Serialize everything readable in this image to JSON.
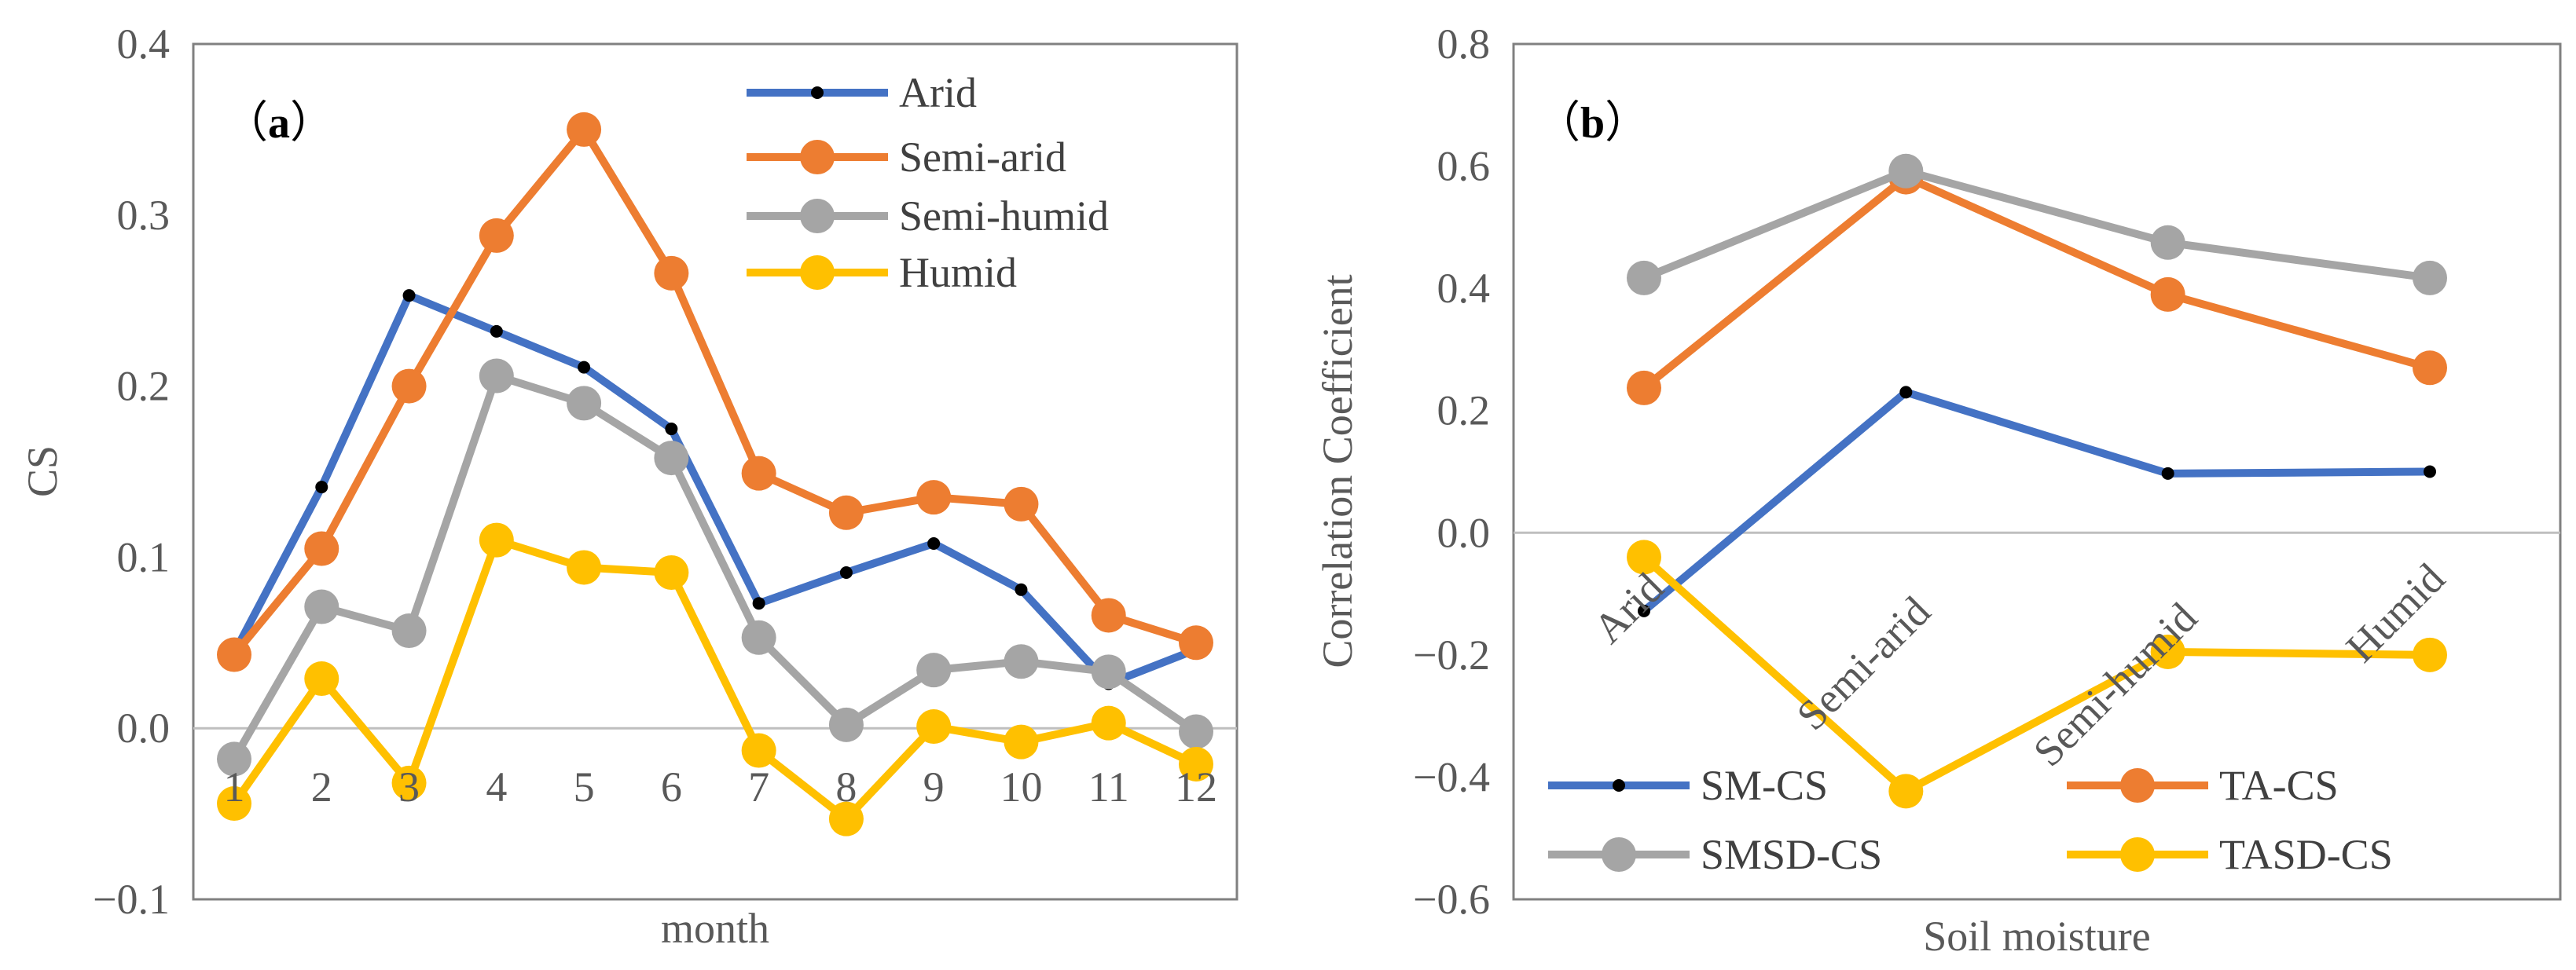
{
  "chart_data": [
    {
      "type": "line",
      "panel_label": "(a)",
      "panel_letter": "a",
      "xlabel": "month",
      "ylabel": "CS",
      "ylim": [
        -0.1,
        0.4
      ],
      "yticks": [
        "-0.1",
        "0.0",
        "0.1",
        "0.2",
        "0.3",
        "0.4"
      ],
      "categories": [
        "1",
        "2",
        "3",
        "4",
        "5",
        "6",
        "7",
        "8",
        "9",
        "10",
        "11",
        "12"
      ],
      "legend_position": "top-right",
      "grid": false,
      "series": [
        {
          "name": "Arid",
          "color": "#4472C4",
          "marker": "small",
          "values": [
            0.044,
            0.141,
            0.253,
            0.232,
            0.211,
            0.175,
            0.073,
            0.091,
            0.108,
            0.081,
            0.026,
            0.046
          ]
        },
        {
          "name": "Semi-arid",
          "color": "#ED7D31",
          "marker": "large",
          "values": [
            0.043,
            0.105,
            0.2,
            0.288,
            0.35,
            0.266,
            0.149,
            0.126,
            0.135,
            0.131,
            0.066,
            0.05
          ]
        },
        {
          "name": "Semi-humid",
          "color": "#A5A5A5",
          "marker": "large",
          "values": [
            -0.018,
            0.071,
            0.057,
            0.206,
            0.19,
            0.158,
            0.053,
            0.002,
            0.034,
            0.039,
            0.033,
            -0.002
          ]
        },
        {
          "name": "Humid",
          "color": "#FFC000",
          "marker": "large",
          "values": [
            -0.044,
            0.029,
            -0.032,
            0.11,
            0.094,
            0.091,
            -0.013,
            -0.053,
            0.001,
            -0.008,
            0.003,
            -0.021
          ]
        }
      ]
    },
    {
      "type": "line",
      "panel_label": "(b)",
      "panel_letter": "b",
      "xlabel": "Soil moisture",
      "ylabel": "Correlation Coefficient",
      "ylim": [
        -0.6,
        0.8
      ],
      "yticks": [
        "-0.6",
        "-0.4",
        "-0.2",
        "0.0",
        "0.2",
        "0.4",
        "0.6",
        "0.8"
      ],
      "categories": [
        "Arid",
        "Semi-arid",
        "Semi-humid",
        "Humid"
      ],
      "legend_position": "bottom",
      "grid": false,
      "series": [
        {
          "name": "SM-CS",
          "color": "#4472C4",
          "marker": "small",
          "values": [
            -0.128,
            0.23,
            0.097,
            0.1
          ]
        },
        {
          "name": "TA-CS",
          "color": "#ED7D31",
          "marker": "large",
          "values": [
            0.237,
            0.582,
            0.39,
            0.27
          ]
        },
        {
          "name": "SMSD-CS",
          "color": "#A5A5A5",
          "marker": "large",
          "values": [
            0.417,
            0.592,
            0.475,
            0.417
          ]
        },
        {
          "name": "TASD-CS",
          "color": "#FFC000",
          "marker": "large",
          "values": [
            -0.04,
            -0.423,
            -0.195,
            -0.2
          ]
        }
      ]
    }
  ]
}
